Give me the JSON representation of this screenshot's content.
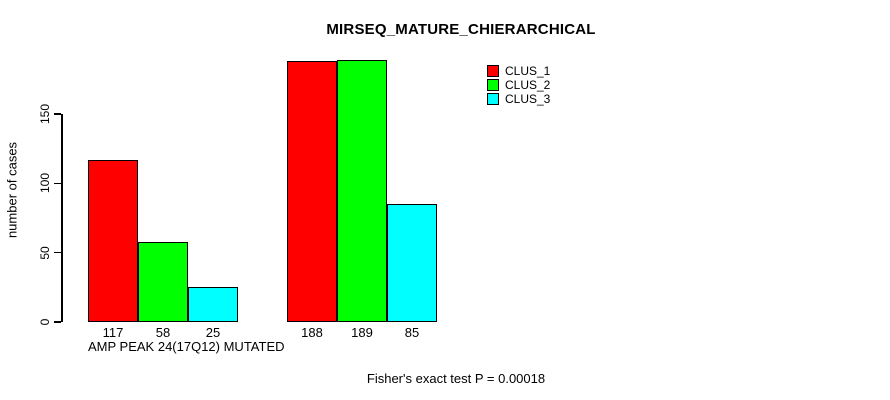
{
  "chart_data": {
    "type": "bar",
    "title": "MIRSEQ_MATURE_CHIERARCHICAL",
    "ylabel": "number of cases",
    "xlabel": "",
    "ylim": [
      0,
      150
    ],
    "yticks": [
      0,
      50,
      100,
      150
    ],
    "grid": false,
    "legend_position": "top-right-inside",
    "categories": [
      "AMP PEAK 24(17Q12) MUTATED",
      ""
    ],
    "groups": [
      {
        "label": "AMP PEAK 24(17Q12) MUTATED",
        "bar_labels": [
          "117",
          "58",
          "25"
        ]
      },
      {
        "label": "",
        "bar_labels": [
          "188",
          "189",
          "85"
        ]
      }
    ],
    "series": [
      {
        "name": "CLUS_1",
        "color": "#FF0000",
        "values": [
          117,
          188
        ]
      },
      {
        "name": "CLUS_2",
        "color": "#00FF00",
        "values": [
          58,
          189
        ]
      },
      {
        "name": "CLUS_3",
        "color": "#00FFFF",
        "values": [
          25,
          85
        ]
      }
    ],
    "annotation": "Fisher's exact test P = 0.00018"
  }
}
